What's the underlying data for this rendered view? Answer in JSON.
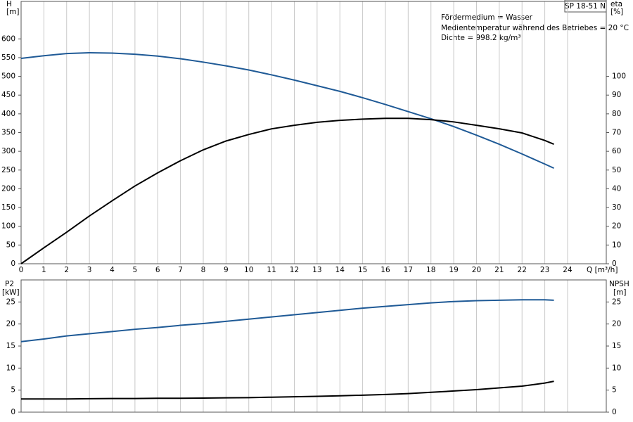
{
  "chart_data": [
    {
      "type": "line",
      "title": "SP 18-51 N",
      "annotations": [
        "Fördermedium = Wasser",
        "Medientemperatur während des Betriebes = 20 °C",
        "Dichte = 998.2 kg/m³"
      ],
      "ylabel": "H",
      "yunit": "[m]",
      "y2label": "eta",
      "y2unit": "[%]",
      "xlabel": "Q [m³/h]",
      "x": [
        0,
        1,
        2,
        3,
        4,
        5,
        6,
        7,
        8,
        9,
        10,
        11,
        12,
        13,
        14,
        15,
        16,
        17,
        18,
        19,
        20,
        21,
        22,
        23,
        23.4
      ],
      "xlim": [
        0,
        25.7
      ],
      "xticks": [
        0,
        1,
        2,
        3,
        4,
        5,
        6,
        7,
        8,
        9,
        10,
        11,
        12,
        13,
        14,
        15,
        16,
        17,
        18,
        19,
        20,
        21,
        22,
        23,
        24
      ],
      "ylim": [
        0,
        700
      ],
      "yticks": [
        0,
        50,
        100,
        150,
        200,
        250,
        300,
        350,
        400,
        450,
        500,
        550,
        600
      ],
      "y2lim": [
        0,
        140
      ],
      "y2ticks": [
        0,
        10,
        20,
        30,
        40,
        50,
        60,
        70,
        80,
        90,
        100
      ],
      "grid": true,
      "series": [
        {
          "name": "H",
          "color": "#1f5a96",
          "values": [
            548,
            555,
            561,
            563,
            562,
            559,
            554,
            547,
            538,
            528,
            517,
            504,
            490,
            475,
            460,
            443,
            425,
            406,
            387,
            366,
            343,
            319,
            293,
            266,
            255
          ]
        },
        {
          "name": "eta",
          "color": "#000000",
          "axis": "y2",
          "values": [
            0,
            8.5,
            16.8,
            25.5,
            33.6,
            41.5,
            48.5,
            55,
            60.8,
            65.5,
            69,
            72,
            73.9,
            75.5,
            76.5,
            77.2,
            77.6,
            77.6,
            76.9,
            75.7,
            73.9,
            72,
            69.8,
            65.8,
            63.8
          ]
        }
      ]
    },
    {
      "type": "line",
      "ylabel": "P2",
      "yunit": "[kW]",
      "y2label": "NPSH",
      "y2unit": "[m]",
      "x": [
        0,
        1,
        2,
        3,
        4,
        5,
        6,
        7,
        8,
        9,
        10,
        11,
        12,
        13,
        14,
        15,
        16,
        17,
        18,
        19,
        20,
        21,
        22,
        23,
        23.4
      ],
      "xlim": [
        0,
        25.7
      ],
      "xticks": [
        0,
        1,
        2,
        3,
        4,
        5,
        6,
        7,
        8,
        9,
        10,
        11,
        12,
        13,
        14,
        15,
        16,
        17,
        18,
        19,
        20,
        21,
        22,
        23,
        24
      ],
      "ylim": [
        0,
        30
      ],
      "yticks": [
        0,
        5,
        10,
        15,
        20,
        25
      ],
      "y2lim": [
        0,
        30
      ],
      "y2ticks": [
        0,
        5,
        10,
        15,
        20,
        25
      ],
      "grid": true,
      "series": [
        {
          "name": "P2",
          "color": "#1f5a96",
          "values": [
            16,
            16.6,
            17.3,
            17.8,
            18.3,
            18.8,
            19.2,
            19.7,
            20.1,
            20.6,
            21.1,
            21.6,
            22.1,
            22.6,
            23.1,
            23.6,
            24,
            24.4,
            24.8,
            25.1,
            25.3,
            25.4,
            25.5,
            25.5,
            25.4
          ]
        },
        {
          "name": "NPSH",
          "color": "#000000",
          "axis": "y2",
          "values": [
            3.0,
            3.0,
            3.0,
            3.05,
            3.1,
            3.1,
            3.15,
            3.15,
            3.2,
            3.25,
            3.3,
            3.4,
            3.5,
            3.6,
            3.7,
            3.85,
            4.0,
            4.2,
            4.5,
            4.8,
            5.1,
            5.5,
            5.9,
            6.6,
            7.0
          ]
        }
      ]
    }
  ]
}
